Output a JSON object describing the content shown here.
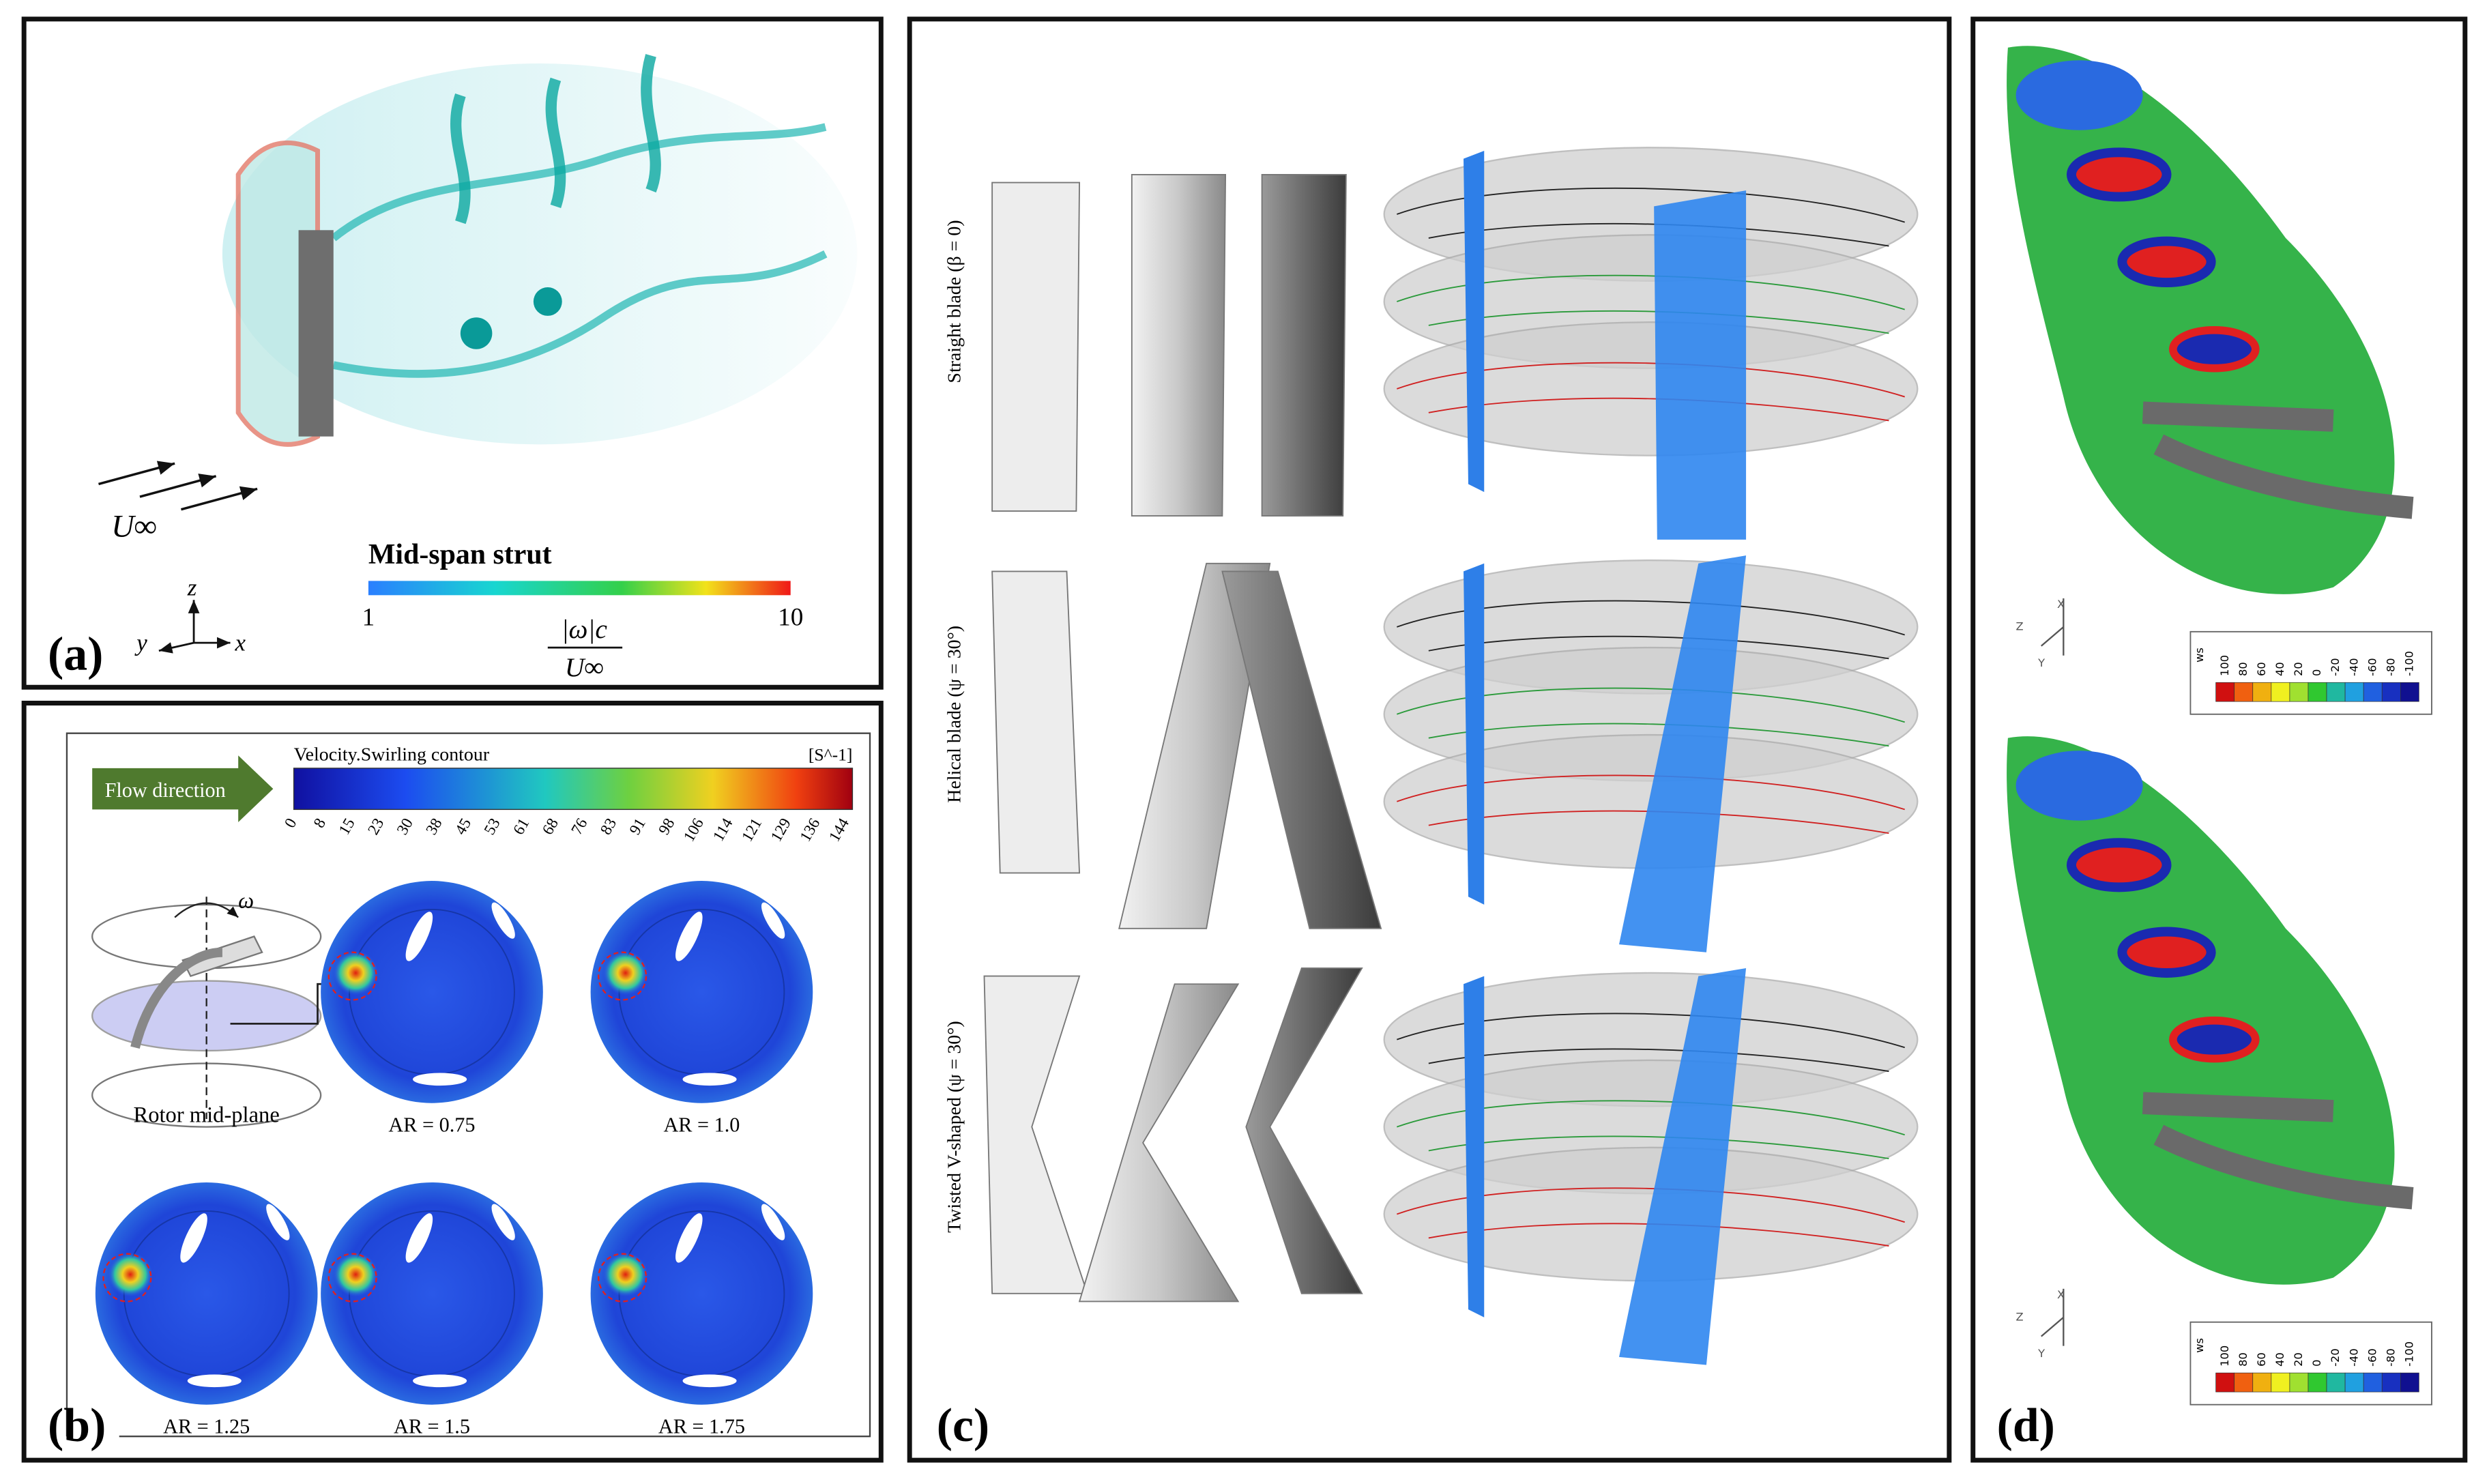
{
  "panels": {
    "a": {
      "label": "(a)",
      "freestream": "U∞",
      "colorbar": {
        "title": "Mid-span strut",
        "min": 1,
        "max": 10,
        "numerator": "|ω|c",
        "denominator": "U∞"
      },
      "axes": {
        "z": "z",
        "y": "y",
        "x": "x"
      }
    },
    "b": {
      "label": "(b)",
      "colorbar_title": "Velocity.Swirling contour",
      "unit": "[S^-1]",
      "flow": "Flow direction",
      "ticks": [
        0,
        8,
        15,
        23,
        30,
        38,
        45,
        53,
        61,
        68,
        76,
        83,
        91,
        98,
        106,
        114,
        121,
        129,
        136,
        144
      ],
      "omega": "ω",
      "midplane": "Rotor mid-plane",
      "cases": [
        "AR = 0.75",
        "AR = 1.0",
        "AR = 1.25",
        "AR = 1.5",
        "AR = 1.75"
      ]
    },
    "c": {
      "label": "(c)",
      "rows": [
        "Straight blade (β = 0)",
        "Helical blade (ψ = 30°)",
        "Twisted V-shaped (ψ = 30°)"
      ]
    },
    "d": {
      "label": "(d)",
      "axes": {
        "x": "X",
        "y": "Y",
        "z": "Z"
      },
      "legends": [
        {
          "title": "ws",
          "ticks": [
            100,
            80,
            60,
            40,
            20,
            0,
            -20,
            -40,
            -60,
            -80,
            -100
          ]
        },
        {
          "title": "ws",
          "ticks": [
            100,
            80,
            60,
            40,
            20,
            0,
            -20,
            -40,
            -60,
            -80,
            -100
          ]
        }
      ]
    }
  }
}
